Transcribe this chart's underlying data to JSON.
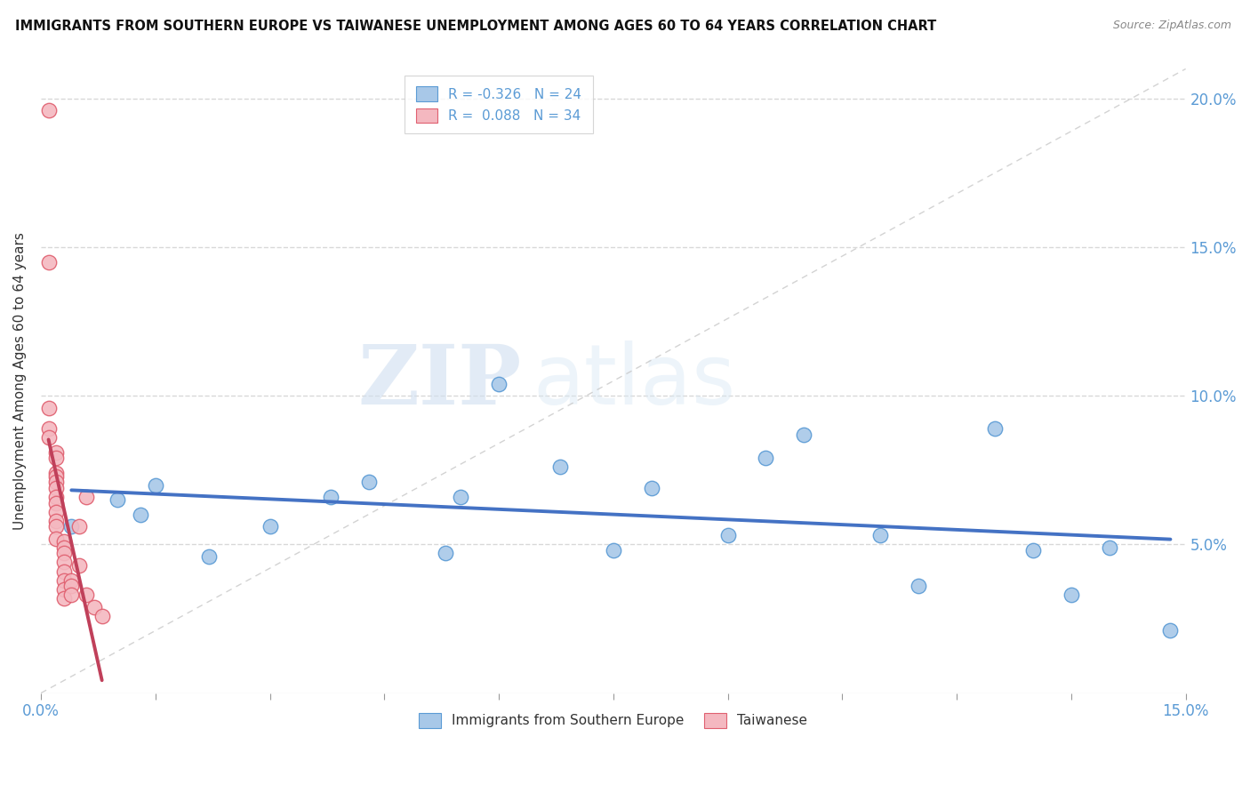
{
  "title": "IMMIGRANTS FROM SOUTHERN EUROPE VS TAIWANESE UNEMPLOYMENT AMONG AGES 60 TO 64 YEARS CORRELATION CHART",
  "source": "Source: ZipAtlas.com",
  "ylabel": "Unemployment Among Ages 60 to 64 years",
  "xlim": [
    0.0,
    0.15
  ],
  "ylim": [
    0.0,
    0.21
  ],
  "xtick_major": [
    0.0,
    0.15
  ],
  "xtick_minor_vals": [
    0.015,
    0.03,
    0.045,
    0.06,
    0.075,
    0.09,
    0.105,
    0.12,
    0.135
  ],
  "ytick_vals": [
    0.05,
    0.1,
    0.15,
    0.2
  ],
  "ytick_labels_right": [
    "5.0%",
    "10.0%",
    "15.0%",
    "20.0%"
  ],
  "blue_color": "#a8c8e8",
  "pink_color": "#f4b8c0",
  "blue_edge_color": "#5b9bd5",
  "pink_edge_color": "#e06070",
  "blue_line_color": "#4472c4",
  "pink_line_color": "#c0405a",
  "blue_R": -0.326,
  "blue_N": 24,
  "pink_R": 0.088,
  "pink_N": 34,
  "watermark_zip": "ZIP",
  "watermark_atlas": "atlas",
  "blue_points_x": [
    0.004,
    0.01,
    0.013,
    0.015,
    0.022,
    0.03,
    0.038,
    0.043,
    0.053,
    0.055,
    0.06,
    0.068,
    0.075,
    0.08,
    0.09,
    0.095,
    0.1,
    0.11,
    0.115,
    0.125,
    0.13,
    0.135,
    0.14,
    0.148
  ],
  "blue_points_y": [
    0.056,
    0.065,
    0.06,
    0.07,
    0.046,
    0.056,
    0.066,
    0.071,
    0.047,
    0.066,
    0.104,
    0.076,
    0.048,
    0.069,
    0.053,
    0.079,
    0.087,
    0.053,
    0.036,
    0.089,
    0.048,
    0.033,
    0.049,
    0.021
  ],
  "pink_points_x": [
    0.001,
    0.001,
    0.001,
    0.001,
    0.001,
    0.002,
    0.002,
    0.002,
    0.002,
    0.002,
    0.002,
    0.002,
    0.002,
    0.002,
    0.002,
    0.002,
    0.002,
    0.003,
    0.003,
    0.003,
    0.003,
    0.003,
    0.003,
    0.003,
    0.003,
    0.004,
    0.004,
    0.004,
    0.005,
    0.005,
    0.006,
    0.006,
    0.007,
    0.008
  ],
  "pink_points_y": [
    0.196,
    0.145,
    0.096,
    0.089,
    0.086,
    0.081,
    0.079,
    0.074,
    0.073,
    0.071,
    0.069,
    0.066,
    0.064,
    0.061,
    0.058,
    0.056,
    0.052,
    0.051,
    0.049,
    0.047,
    0.044,
    0.041,
    0.038,
    0.035,
    0.032,
    0.038,
    0.036,
    0.033,
    0.056,
    0.043,
    0.066,
    0.033,
    0.029,
    0.026
  ],
  "background_color": "#ffffff",
  "grid_color": "#d8d8d8"
}
